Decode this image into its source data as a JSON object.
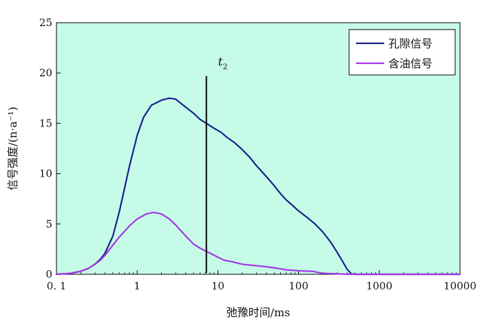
{
  "chart_data": {
    "type": "line",
    "xlabel": "弛豫时间/ms",
    "ylabel": "信号强度/(n·a⁻¹)",
    "x_scale": "log",
    "xlim": [
      0.1,
      10000
    ],
    "ylim": [
      0,
      25
    ],
    "x_ticks": [
      "0. 1",
      "1",
      "10",
      "100",
      "1000",
      "10000"
    ],
    "y_ticks": [
      "0",
      "5",
      "10",
      "15",
      "20",
      "25"
    ],
    "legend_position": "top-right",
    "colors": {
      "background": "#c6fbe7",
      "pore": "#1a1f8c",
      "oil": "#a335e6"
    },
    "marker": {
      "label": "t",
      "subscript": "2",
      "x": 7.2,
      "y_top": 19.7
    },
    "series": [
      {
        "name": "孔隙信号",
        "points": [
          [
            0.1,
            0
          ],
          [
            0.15,
            0.1
          ],
          [
            0.2,
            0.3
          ],
          [
            0.25,
            0.6
          ],
          [
            0.3,
            1.0
          ],
          [
            0.35,
            1.5
          ],
          [
            0.4,
            2.1
          ],
          [
            0.5,
            3.8
          ],
          [
            0.6,
            6.2
          ],
          [
            0.7,
            8.6
          ],
          [
            0.8,
            10.7
          ],
          [
            1.0,
            13.8
          ],
          [
            1.2,
            15.6
          ],
          [
            1.5,
            16.8
          ],
          [
            2.0,
            17.3
          ],
          [
            2.5,
            17.5
          ],
          [
            3.0,
            17.4
          ],
          [
            4.0,
            16.6
          ],
          [
            5.0,
            16.0
          ],
          [
            6.0,
            15.4
          ],
          [
            7.2,
            15.0
          ],
          [
            9.0,
            14.5
          ],
          [
            11.0,
            14.1
          ],
          [
            13.0,
            13.6
          ],
          [
            16.0,
            13.1
          ],
          [
            20.0,
            12.4
          ],
          [
            25.0,
            11.6
          ],
          [
            30.0,
            10.8
          ],
          [
            40.0,
            9.7
          ],
          [
            50.0,
            8.8
          ],
          [
            60.0,
            8.0
          ],
          [
            70.0,
            7.4
          ],
          [
            80.0,
            7.0
          ],
          [
            100.0,
            6.3
          ],
          [
            130.0,
            5.6
          ],
          [
            160.0,
            5.0
          ],
          [
            200.0,
            4.2
          ],
          [
            250.0,
            3.2
          ],
          [
            300.0,
            2.2
          ],
          [
            350.0,
            1.3
          ],
          [
            400.0,
            0.5
          ],
          [
            450.0,
            0.05
          ],
          [
            500.0,
            0
          ],
          [
            1000.0,
            0
          ],
          [
            10000.0,
            0
          ]
        ]
      },
      {
        "name": "含油信号",
        "points": [
          [
            0.1,
            0
          ],
          [
            0.15,
            0.1
          ],
          [
            0.2,
            0.3
          ],
          [
            0.25,
            0.6
          ],
          [
            0.3,
            1.0
          ],
          [
            0.35,
            1.4
          ],
          [
            0.4,
            1.9
          ],
          [
            0.5,
            2.9
          ],
          [
            0.6,
            3.7
          ],
          [
            0.8,
            4.8
          ],
          [
            1.0,
            5.5
          ],
          [
            1.3,
            6.0
          ],
          [
            1.6,
            6.15
          ],
          [
            2.0,
            6.0
          ],
          [
            2.5,
            5.5
          ],
          [
            3.0,
            4.9
          ],
          [
            4.0,
            3.8
          ],
          [
            5.0,
            3.0
          ],
          [
            6.0,
            2.6
          ],
          [
            8.0,
            2.1
          ],
          [
            10.0,
            1.7
          ],
          [
            12.0,
            1.4
          ],
          [
            15.0,
            1.25
          ],
          [
            20.0,
            1.0
          ],
          [
            30.0,
            0.85
          ],
          [
            40.0,
            0.75
          ],
          [
            50.0,
            0.65
          ],
          [
            70.0,
            0.45
          ],
          [
            100.0,
            0.35
          ],
          [
            150.0,
            0.3
          ],
          [
            170.0,
            0.2
          ],
          [
            200.0,
            0.1
          ],
          [
            300.0,
            0.05
          ],
          [
            400.0,
            0
          ],
          [
            10000.0,
            0
          ]
        ]
      }
    ]
  }
}
